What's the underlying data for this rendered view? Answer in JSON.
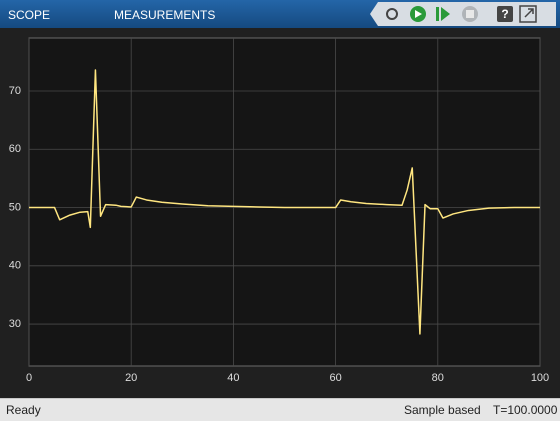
{
  "toolbar": {
    "tabs": [
      "SCOPE",
      "MEASUREMENTS"
    ]
  },
  "status_bar": {
    "state": "Ready",
    "mode": "Sample based",
    "time": "T=100.0000"
  },
  "chart_data": {
    "type": "line",
    "x": [
      0,
      5,
      6,
      8,
      10,
      11.5,
      12,
      13,
      14,
      15,
      17,
      18,
      20,
      21,
      23,
      26,
      30,
      35,
      40,
      45,
      50,
      60,
      61,
      63,
      66,
      70,
      73,
      74,
      75,
      76.5,
      77.5,
      78.5,
      80,
      81,
      83,
      86,
      90,
      95,
      100
    ],
    "values": [
      50,
      50,
      47.9,
      48.7,
      49.2,
      49.3,
      46.6,
      73.6,
      48.5,
      50.5,
      50.4,
      50.2,
      50.1,
      51.8,
      51.3,
      50.9,
      50.6,
      50.3,
      50.2,
      50.1,
      50,
      50,
      51.3,
      51,
      50.7,
      50.5,
      50.4,
      53,
      56.8,
      28.3,
      50.5,
      49.8,
      49.8,
      48.2,
      48.9,
      49.5,
      49.9,
      50,
      50
    ],
    "color": "#ffe680",
    "xlim": [
      0,
      100
    ],
    "xticks": [
      0,
      20,
      40,
      60,
      80,
      100
    ],
    "ylim": [
      22.8,
      79.1
    ],
    "yticks": [
      30,
      40,
      50,
      60,
      70
    ],
    "grid": true
  }
}
